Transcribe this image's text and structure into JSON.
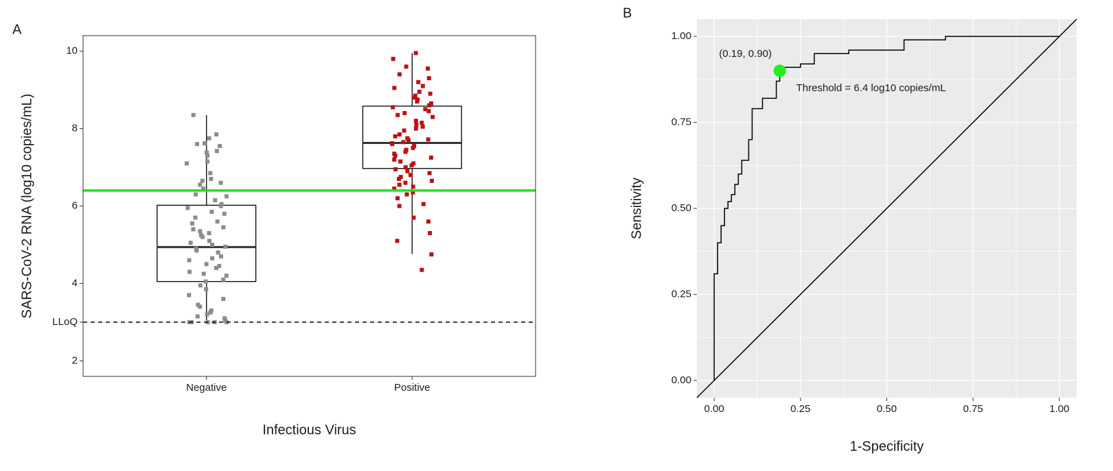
{
  "chart_data": [
    {
      "type": "box",
      "panel_label": "A",
      "y_label": "SARS-CoV-2 RNA (log10 copies/mL)",
      "x_label": "Infectious Virus",
      "categories": [
        "Negative",
        "Positive"
      ],
      "ylim": [
        1.6,
        10.4
      ],
      "yticks": [
        2,
        {
          "value": 3,
          "label": "LLoQ"
        },
        4,
        6,
        8,
        10
      ],
      "grid": false,
      "background": "#ffffff",
      "boxes": [
        {
          "min": 3.0,
          "q1": 4.05,
          "median": 4.94,
          "q3": 6.02,
          "max": 8.35
        },
        {
          "min": 4.76,
          "q1": 6.97,
          "median": 7.63,
          "q3": 8.58,
          "max": 9.95
        }
      ],
      "points": [
        {
          "color": "#8c8c8c",
          "values": [
            8.35,
            7.85,
            7.75,
            7.62,
            7.6,
            7.55,
            7.42,
            7.38,
            7.3,
            7.15,
            7.1,
            6.85,
            6.7,
            6.65,
            6.6,
            6.55,
            6.45,
            6.3,
            6.25,
            6.15,
            6.05,
            6.0,
            5.95,
            5.85,
            5.8,
            5.7,
            5.6,
            5.55,
            5.45,
            5.4,
            5.35,
            5.3,
            5.25,
            5.2,
            5.1,
            5.05,
            5.0,
            4.95,
            4.9,
            4.85,
            4.8,
            4.7,
            4.65,
            4.6,
            4.5,
            4.45,
            4.4,
            4.3,
            4.25,
            4.2,
            4.1,
            4.05,
            3.95,
            3.85,
            3.7,
            3.6,
            3.45,
            3.4,
            3.3,
            3.25,
            3.2,
            3.15,
            3.1,
            3.05,
            3.0,
            3.0,
            3.0,
            3.0,
            3.0
          ]
        },
        {
          "color": "#b81414",
          "values": [
            9.95,
            9.8,
            9.6,
            9.55,
            9.4,
            9.3,
            9.2,
            9.1,
            9.05,
            8.95,
            8.9,
            8.85,
            8.8,
            8.75,
            8.7,
            8.65,
            8.6,
            8.55,
            8.5,
            8.45,
            8.4,
            8.35,
            8.3,
            8.2,
            8.15,
            8.1,
            8.05,
            8.0,
            7.95,
            7.85,
            7.8,
            7.75,
            7.72,
            7.7,
            7.65,
            7.62,
            7.6,
            7.55,
            7.5,
            7.45,
            7.4,
            7.35,
            7.3,
            7.25,
            7.2,
            7.15,
            7.1,
            7.05,
            7.0,
            6.95,
            6.9,
            6.85,
            6.8,
            6.75,
            6.7,
            6.65,
            6.6,
            6.55,
            6.5,
            6.45,
            6.35,
            6.3,
            6.2,
            6.05,
            6.0,
            5.7,
            5.6,
            5.3,
            5.1,
            4.75,
            4.35
          ]
        }
      ],
      "reference_lines": [
        {
          "value": 6.4,
          "color": "#22e022",
          "style": "solid"
        },
        {
          "value": 3,
          "color": "#000000",
          "style": "dashed"
        }
      ]
    },
    {
      "type": "line",
      "panel_label": "B",
      "y_label": "Sensitivity",
      "x_label": "1-Specificity",
      "xlim": [
        -0.05,
        1.05
      ],
      "ylim": [
        -0.05,
        1.05
      ],
      "xticks": [
        {
          "value": 0,
          "label": "0.00"
        },
        {
          "value": 0.25,
          "label": "0.25"
        },
        {
          "value": 0.5,
          "label": "0.50"
        },
        {
          "value": 0.75,
          "label": "0.75"
        },
        {
          "value": 1,
          "label": "1.00"
        }
      ],
      "yticks": [
        {
          "value": 0,
          "label": "0.00"
        },
        {
          "value": 0.25,
          "label": "0.25"
        },
        {
          "value": 0.5,
          "label": "0.50"
        },
        {
          "value": 0.75,
          "label": "0.75"
        },
        {
          "value": 1,
          "label": "1.00"
        }
      ],
      "grid": true,
      "background": "#ebebeb",
      "series": [
        {
          "color": "#000000",
          "x": [
            0,
            0,
            0.01,
            0.01,
            0.02,
            0.02,
            0.03,
            0.03,
            0.04,
            0.04,
            0.05,
            0.05,
            0.06,
            0.06,
            0.07,
            0.07,
            0.08,
            0.08,
            0.1,
            0.1,
            0.11,
            0.11,
            0.14,
            0.14,
            0.18,
            0.18,
            0.19,
            0.19,
            0.25,
            0.25,
            0.29,
            0.29,
            0.39,
            0.39,
            0.55,
            0.55,
            0.67,
            0.67,
            1
          ],
          "y": [
            0,
            0.31,
            0.31,
            0.4,
            0.4,
            0.45,
            0.45,
            0.5,
            0.5,
            0.52,
            0.52,
            0.54,
            0.54,
            0.57,
            0.57,
            0.6,
            0.6,
            0.64,
            0.64,
            0.7,
            0.7,
            0.79,
            0.79,
            0.82,
            0.82,
            0.87,
            0.87,
            0.91,
            0.91,
            0.92,
            0.92,
            0.95,
            0.95,
            0.96,
            0.96,
            0.99,
            0.99,
            1,
            1
          ]
        }
      ],
      "highlight": {
        "x": 0.19,
        "y": 0.9,
        "color": "#22ee22"
      },
      "annotations": [
        "(0.19, 0.90)",
        "Threshold = 6.4 log10 copies/mL"
      ]
    }
  ]
}
